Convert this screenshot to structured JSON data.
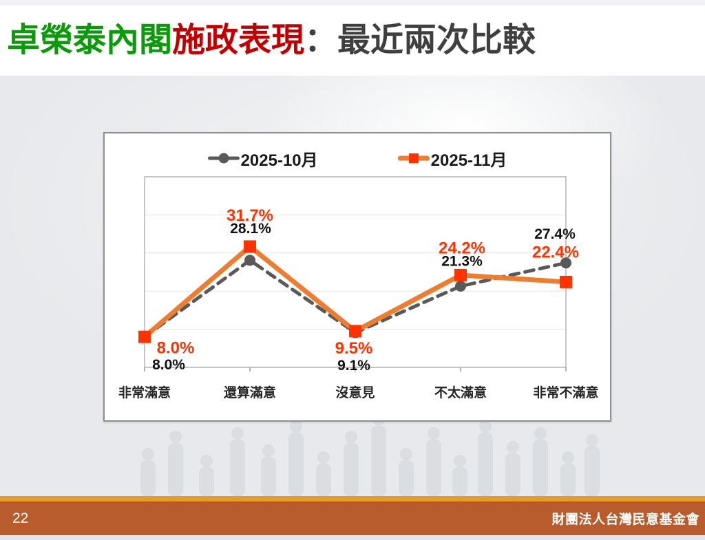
{
  "slide": {
    "title": {
      "part_green": "卓榮泰內閣",
      "part_red": "施政表現",
      "part_gray": "：最近兩次比較"
    },
    "page_number": "22",
    "footer_org": "財團法人台灣民意基金會"
  },
  "colors": {
    "title_green": "#0a9a0a",
    "title_red": "#c00000",
    "title_gray": "#3f3f3f",
    "series_oct": "#595959",
    "series_nov_line": "#ed7d31",
    "series_nov_marker": "#ff3200",
    "footer_amber": "#e69b2c",
    "footer_rust": "#b85c2e",
    "content_bg": "#e7e9ec"
  },
  "chart_data": {
    "type": "line",
    "categories": [
      "非常滿意",
      "還算滿意",
      "沒意見",
      "不太滿意",
      "非常不滿意"
    ],
    "series": [
      {
        "name": "2025-10月",
        "values": [
          8.0,
          28.1,
          9.1,
          21.3,
          27.4
        ],
        "labels": [
          "8.0%",
          "28.1%",
          "9.1%",
          "21.3%",
          "27.4%"
        ],
        "color": "#595959",
        "label_color": "#111111",
        "style": "dashed",
        "marker": "circle"
      },
      {
        "name": "2025-11月",
        "values": [
          8.0,
          31.7,
          9.5,
          24.2,
          22.4
        ],
        "labels": [
          "8.0%",
          "31.7%",
          "9.5%",
          "24.2%",
          "22.4%"
        ],
        "color": "#ed7d31",
        "marker_color": "#ff3200",
        "label_color": "#ff3200",
        "style": "solid",
        "marker": "square"
      }
    ],
    "ylim": [
      0,
      50
    ],
    "gridlines": [
      10,
      20,
      30,
      40
    ],
    "grid_on": true,
    "legend_position": "top",
    "xlabel": "",
    "ylabel": ""
  }
}
